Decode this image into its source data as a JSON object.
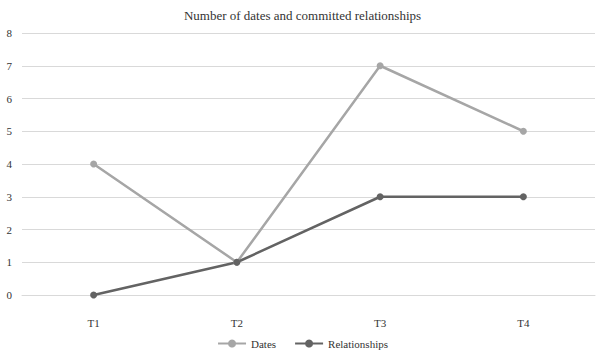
{
  "chart_data": {
    "type": "line",
    "title": "Number of dates and committed relationships",
    "categories": [
      "T1",
      "T2",
      "T3",
      "T4"
    ],
    "series": [
      {
        "name": "Dates",
        "color": "#a6a6a6",
        "values": [
          4,
          1,
          7,
          5
        ]
      },
      {
        "name": "Relationships",
        "color": "#636363",
        "values": [
          0,
          1,
          3,
          3
        ]
      }
    ],
    "ylim": [
      0,
      8
    ],
    "yticks": [
      0,
      1,
      2,
      3,
      4,
      5,
      6,
      7,
      8
    ],
    "grid": true,
    "legend": "bottom",
    "marker": "circle"
  }
}
